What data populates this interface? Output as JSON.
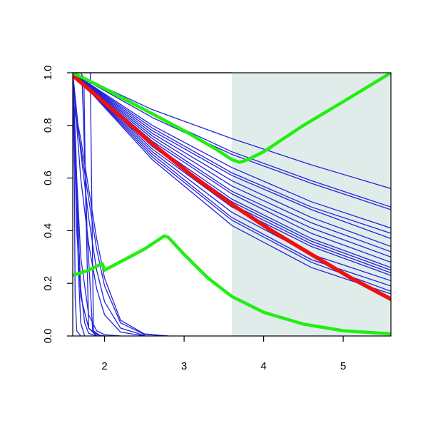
{
  "chart_data": {
    "type": "line",
    "title": "",
    "xlabel": "",
    "ylabel": "",
    "xlim": [
      1.6,
      5.6
    ],
    "ylim": [
      0.0,
      1.0
    ],
    "x_ticks": [
      2,
      3,
      4,
      5
    ],
    "y_ticks": [
      0.0,
      0.2,
      0.4,
      0.6,
      0.8,
      1.0
    ],
    "x_tick_labels": [
      "2",
      "3",
      "4",
      "5"
    ],
    "y_tick_labels": [
      "0.0",
      "0.2",
      "0.4",
      "0.6",
      "0.8",
      "1.0"
    ],
    "grid": false,
    "legend": "none",
    "shaded_region": {
      "x": [
        3.6,
        5.6
      ],
      "color": "#e0ecea"
    },
    "colors": {
      "blue": "#2222dd",
      "red": "#ee1111",
      "green": "#22ee11"
    },
    "series": [
      {
        "group": "blue-slow",
        "color": "#2222dd",
        "x": [
          1.6,
          2.6,
          3.6,
          4.6,
          5.6
        ],
        "y": [
          1.0,
          0.86,
          0.75,
          0.65,
          0.56
        ]
      },
      {
        "group": "blue-slow",
        "color": "#2222dd",
        "x": [
          1.6,
          2.6,
          3.6,
          4.6,
          5.6
        ],
        "y": [
          1.0,
          0.84,
          0.7,
          0.59,
          0.49
        ]
      },
      {
        "group": "blue-slow",
        "color": "#2222dd",
        "x": [
          1.6,
          2.6,
          3.6,
          4.6,
          5.6
        ],
        "y": [
          1.0,
          0.83,
          0.69,
          0.58,
          0.48
        ]
      },
      {
        "group": "blue-slow",
        "color": "#2222dd",
        "x": [
          1.6,
          2.6,
          3.6,
          4.6,
          5.6
        ],
        "y": [
          1.0,
          0.8,
          0.64,
          0.51,
          0.41
        ]
      },
      {
        "group": "blue-slow",
        "color": "#2222dd",
        "x": [
          1.6,
          2.6,
          3.6,
          4.6,
          5.6
        ],
        "y": [
          1.0,
          0.79,
          0.62,
          0.49,
          0.39
        ]
      },
      {
        "group": "blue-slow",
        "color": "#2222dd",
        "x": [
          1.6,
          2.6,
          3.6,
          4.6,
          5.6
        ],
        "y": [
          1.0,
          0.78,
          0.61,
          0.48,
          0.37
        ]
      },
      {
        "group": "blue-slow",
        "color": "#2222dd",
        "x": [
          1.6,
          2.6,
          3.6,
          4.6,
          5.6
        ],
        "y": [
          1.0,
          0.77,
          0.59,
          0.45,
          0.34
        ]
      },
      {
        "group": "blue-slow",
        "color": "#2222dd",
        "x": [
          1.6,
          2.6,
          3.6,
          4.6,
          5.6
        ],
        "y": [
          1.0,
          0.76,
          0.57,
          0.43,
          0.32
        ]
      },
      {
        "group": "blue-slow",
        "color": "#2222dd",
        "x": [
          1.6,
          2.6,
          3.6,
          4.6,
          5.6
        ],
        "y": [
          1.0,
          0.75,
          0.55,
          0.41,
          0.3
        ]
      },
      {
        "group": "blue-slow",
        "color": "#2222dd",
        "x": [
          1.6,
          2.6,
          3.6,
          4.6,
          5.6
        ],
        "y": [
          1.0,
          0.74,
          0.54,
          0.39,
          0.28
        ]
      },
      {
        "group": "blue-slow",
        "color": "#2222dd",
        "x": [
          1.6,
          2.6,
          3.6,
          4.6,
          5.6
        ],
        "y": [
          1.0,
          0.73,
          0.52,
          0.37,
          0.26
        ]
      },
      {
        "group": "blue-slow",
        "color": "#2222dd",
        "x": [
          1.6,
          2.6,
          3.6,
          4.6,
          5.6
        ],
        "y": [
          1.0,
          0.72,
          0.51,
          0.36,
          0.25
        ]
      },
      {
        "group": "blue-slow",
        "color": "#2222dd",
        "x": [
          1.6,
          2.6,
          3.6,
          4.6,
          5.6
        ],
        "y": [
          1.0,
          0.72,
          0.5,
          0.35,
          0.24
        ]
      },
      {
        "group": "blue-slow",
        "color": "#2222dd",
        "x": [
          1.6,
          2.6,
          3.6,
          4.6,
          5.6
        ],
        "y": [
          1.0,
          0.71,
          0.49,
          0.34,
          0.23
        ]
      },
      {
        "group": "blue-slow",
        "color": "#2222dd",
        "x": [
          1.6,
          2.6,
          3.6,
          4.6,
          5.6
        ],
        "y": [
          1.0,
          0.7,
          0.47,
          0.31,
          0.21
        ]
      },
      {
        "group": "blue-slow",
        "color": "#2222dd",
        "x": [
          1.6,
          2.6,
          3.6,
          4.6,
          5.6
        ],
        "y": [
          1.0,
          0.69,
          0.45,
          0.29,
          0.19
        ]
      },
      {
        "group": "blue-slow",
        "color": "#2222dd",
        "x": [
          1.6,
          2.6,
          3.6,
          4.6,
          5.6
        ],
        "y": [
          1.0,
          0.68,
          0.44,
          0.28,
          0.17
        ]
      },
      {
        "group": "blue-slow",
        "color": "#2222dd",
        "x": [
          1.6,
          2.6,
          3.6,
          4.6,
          5.6
        ],
        "y": [
          1.0,
          0.67,
          0.42,
          0.26,
          0.16
        ]
      },
      {
        "group": "blue-fast",
        "color": "#2222dd",
        "x": [
          1.6,
          1.65,
          1.7,
          1.8,
          1.9,
          2.0,
          2.1
        ],
        "y": [
          1.0,
          0.4,
          0.15,
          0.03,
          0.005,
          0.0,
          0.0
        ]
      },
      {
        "group": "blue-fast",
        "color": "#2222dd",
        "x": [
          1.6,
          1.65,
          1.7,
          1.8,
          1.9,
          2.0,
          2.2
        ],
        "y": [
          1.0,
          0.6,
          0.3,
          0.08,
          0.02,
          0.005,
          0.0
        ]
      },
      {
        "group": "blue-fast",
        "color": "#2222dd",
        "x": [
          1.6,
          1.7,
          1.8,
          1.9,
          2.0,
          2.2,
          2.5
        ],
        "y": [
          1.0,
          0.6,
          0.35,
          0.18,
          0.08,
          0.015,
          0.0
        ]
      },
      {
        "group": "blue-fast",
        "color": "#2222dd",
        "x": [
          1.6,
          1.7,
          1.8,
          1.9,
          2.0,
          2.2,
          2.5
        ],
        "y": [
          1.0,
          0.7,
          0.45,
          0.25,
          0.13,
          0.03,
          0.002
        ]
      },
      {
        "group": "blue-fast",
        "color": "#2222dd",
        "x": [
          1.6,
          1.7,
          1.8,
          1.9,
          2.0,
          2.2,
          2.5,
          2.8
        ],
        "y": [
          0.9,
          0.72,
          0.52,
          0.33,
          0.19,
          0.05,
          0.006,
          0.0
        ]
      },
      {
        "group": "blue-fast",
        "color": "#2222dd",
        "x": [
          1.6,
          1.7,
          1.8,
          1.9,
          2.0,
          2.2,
          2.5,
          2.8
        ],
        "y": [
          0.9,
          0.75,
          0.56,
          0.37,
          0.22,
          0.06,
          0.008,
          0.0
        ]
      },
      {
        "group": "blue-fast",
        "color": "#2222dd",
        "x": [
          1.6,
          1.65,
          1.7,
          1.75,
          1.8,
          1.9,
          2.0
        ],
        "y": [
          1.0,
          0.55,
          0.18,
          0.05,
          0.01,
          0.0,
          0.0
        ]
      },
      {
        "group": "blue-fast",
        "color": "#2222dd",
        "x": [
          1.6,
          1.66,
          1.72,
          1.78,
          1.85,
          1.95
        ],
        "y": [
          1.0,
          0.99,
          0.95,
          0.4,
          0.02,
          0.0
        ]
      },
      {
        "group": "blue-fast",
        "color": "#2222dd",
        "x": [
          1.6,
          1.7,
          1.74,
          1.76,
          1.8,
          1.9
        ],
        "y": [
          1.0,
          1.0,
          0.98,
          0.55,
          0.03,
          0.0
        ]
      },
      {
        "group": "blue-fast",
        "color": "#2222dd",
        "x": [
          1.6,
          1.78,
          1.82,
          1.84,
          1.86,
          1.95
        ],
        "y": [
          1.0,
          1.0,
          1.0,
          0.5,
          0.02,
          0.0
        ]
      },
      {
        "group": "blue-fast",
        "color": "#2222dd",
        "x": [
          1.6,
          1.62,
          1.63,
          1.65,
          1.7
        ],
        "y": [
          1.0,
          0.6,
          0.15,
          0.02,
          0.0
        ]
      },
      {
        "group": "blue-fast",
        "color": "#2222dd",
        "x": [
          1.6,
          1.64,
          1.67,
          1.7,
          1.75
        ],
        "y": [
          1.0,
          0.7,
          0.25,
          0.05,
          0.0
        ]
      },
      {
        "group": "red",
        "color": "#ee1111",
        "x": [
          1.6,
          2.1,
          2.6,
          3.1,
          3.6,
          4.1,
          4.6,
          5.1,
          5.6
        ],
        "y": [
          0.99,
          0.86,
          0.73,
          0.61,
          0.5,
          0.4,
          0.31,
          0.22,
          0.14
        ]
      },
      {
        "group": "green-upper",
        "color": "#22ee11",
        "x": [
          1.6,
          2.0,
          2.5,
          3.0,
          3.4,
          3.6,
          3.7,
          3.8,
          4.0,
          4.5,
          5.0,
          5.6
        ],
        "y": [
          1.0,
          0.94,
          0.86,
          0.78,
          0.71,
          0.67,
          0.66,
          0.67,
          0.7,
          0.8,
          0.89,
          1.0
        ]
      },
      {
        "group": "green-lower",
        "color": "#22ee11",
        "x": [
          1.6,
          1.8,
          1.97,
          2.0,
          2.5,
          2.75,
          2.8,
          3.0,
          3.3,
          3.6,
          4.0,
          4.5,
          5.0,
          5.6
        ],
        "y": [
          0.23,
          0.25,
          0.275,
          0.25,
          0.33,
          0.38,
          0.375,
          0.31,
          0.22,
          0.15,
          0.09,
          0.045,
          0.02,
          0.008
        ]
      }
    ]
  }
}
